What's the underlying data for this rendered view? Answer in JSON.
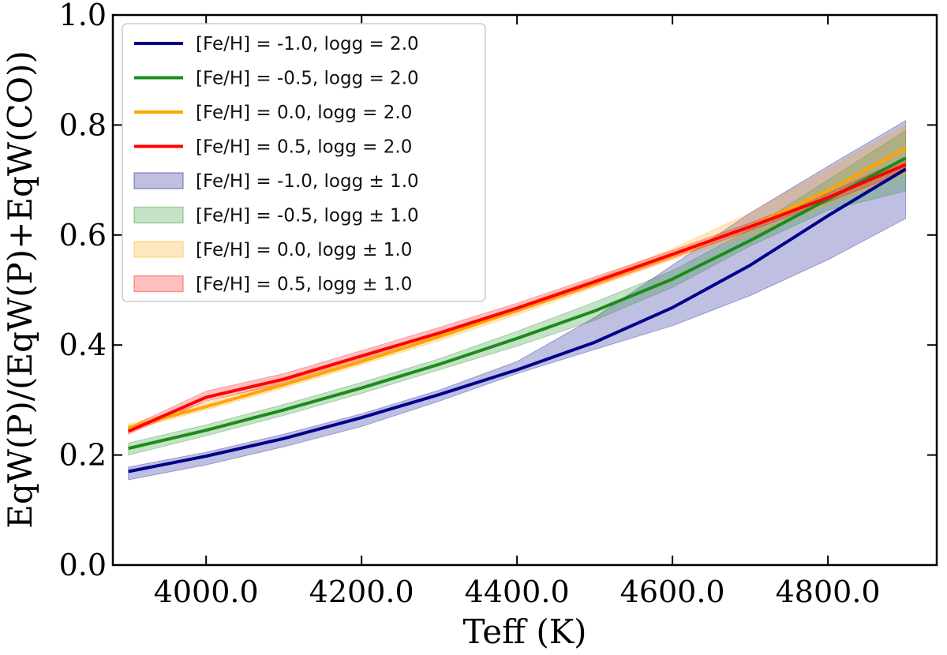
{
  "chart_data": {
    "type": "line",
    "title": "",
    "xlabel": "Teff (K)",
    "ylabel": "EqW(P)/(EqW(P)+EqW(CO))",
    "xlim": [
      3880,
      4940
    ],
    "ylim": [
      0.0,
      1.0
    ],
    "xticks": [
      4000,
      4200,
      4400,
      4600,
      4800
    ],
    "xtick_labels": [
      "4000.0",
      "4200.0",
      "4400.0",
      "4600.0",
      "4800.0"
    ],
    "yticks": [
      0.0,
      0.2,
      0.4,
      0.6,
      0.8,
      1.0
    ],
    "ytick_labels": [
      "0.0",
      "0.2",
      "0.4",
      "0.6",
      "0.8",
      "1.0"
    ],
    "legend_position": "top-left",
    "x": [
      3900,
      4000,
      4100,
      4200,
      4300,
      4400,
      4500,
      4600,
      4700,
      4800,
      4900
    ],
    "series": [
      {
        "name": "[Fe/H] = -1.0, logg = 2.0",
        "color": "#00008b",
        "values": [
          0.17,
          0.198,
          0.23,
          0.268,
          0.31,
          0.355,
          0.405,
          0.468,
          0.545,
          0.635,
          0.72
        ]
      },
      {
        "name": "[Fe/H] = -0.5, logg = 2.0",
        "color": "#1a8c1a",
        "values": [
          0.212,
          0.245,
          0.282,
          0.322,
          0.365,
          0.412,
          0.462,
          0.52,
          0.59,
          0.665,
          0.74
        ]
      },
      {
        "name": "[Fe/H] = 0.0, logg = 2.0",
        "color": "#ffa500",
        "values": [
          0.25,
          0.288,
          0.328,
          0.37,
          0.415,
          0.463,
          0.512,
          0.563,
          0.615,
          0.68,
          0.758
        ]
      },
      {
        "name": "[Fe/H] = 0.5, logg = 2.0",
        "color": "#ff0000",
        "values": [
          0.243,
          0.305,
          0.338,
          0.38,
          0.422,
          0.467,
          0.515,
          0.565,
          0.615,
          0.668,
          0.728
        ]
      }
    ],
    "bands": [
      {
        "name": "[Fe/H] = -1.0, logg ± 1.0",
        "color": "#00008b",
        "lower": [
          0.155,
          0.182,
          0.215,
          0.252,
          0.298,
          0.348,
          0.392,
          0.435,
          0.49,
          0.555,
          0.63
        ],
        "upper": [
          0.178,
          0.205,
          0.238,
          0.275,
          0.318,
          0.37,
          0.45,
          0.545,
          0.64,
          0.725,
          0.808
        ]
      },
      {
        "name": "[Fe/H] = -0.5, logg ± 1.0",
        "color": "#1a8c1a",
        "lower": [
          0.2,
          0.235,
          0.272,
          0.312,
          0.355,
          0.398,
          0.445,
          0.505,
          0.58,
          0.645,
          0.68
        ],
        "upper": [
          0.222,
          0.255,
          0.292,
          0.332,
          0.375,
          0.425,
          0.478,
          0.535,
          0.61,
          0.7,
          0.79
        ]
      },
      {
        "name": "[Fe/H] = 0.0, logg ± 1.0",
        "color": "#ffa500",
        "lower": [
          0.245,
          0.282,
          0.322,
          0.364,
          0.408,
          0.455,
          0.505,
          0.555,
          0.6,
          0.655,
          0.71
        ],
        "upper": [
          0.256,
          0.295,
          0.335,
          0.378,
          0.422,
          0.47,
          0.52,
          0.575,
          0.64,
          0.72,
          0.8
        ]
      },
      {
        "name": "[Fe/H] = 0.5, logg ± 1.0",
        "color": "#ff0000",
        "lower": [
          0.238,
          0.298,
          0.33,
          0.372,
          0.414,
          0.46,
          0.508,
          0.558,
          0.608,
          0.66,
          0.715
        ],
        "upper": [
          0.25,
          0.316,
          0.348,
          0.39,
          0.432,
          0.476,
          0.524,
          0.572,
          0.622,
          0.676,
          0.74
        ]
      }
    ]
  }
}
